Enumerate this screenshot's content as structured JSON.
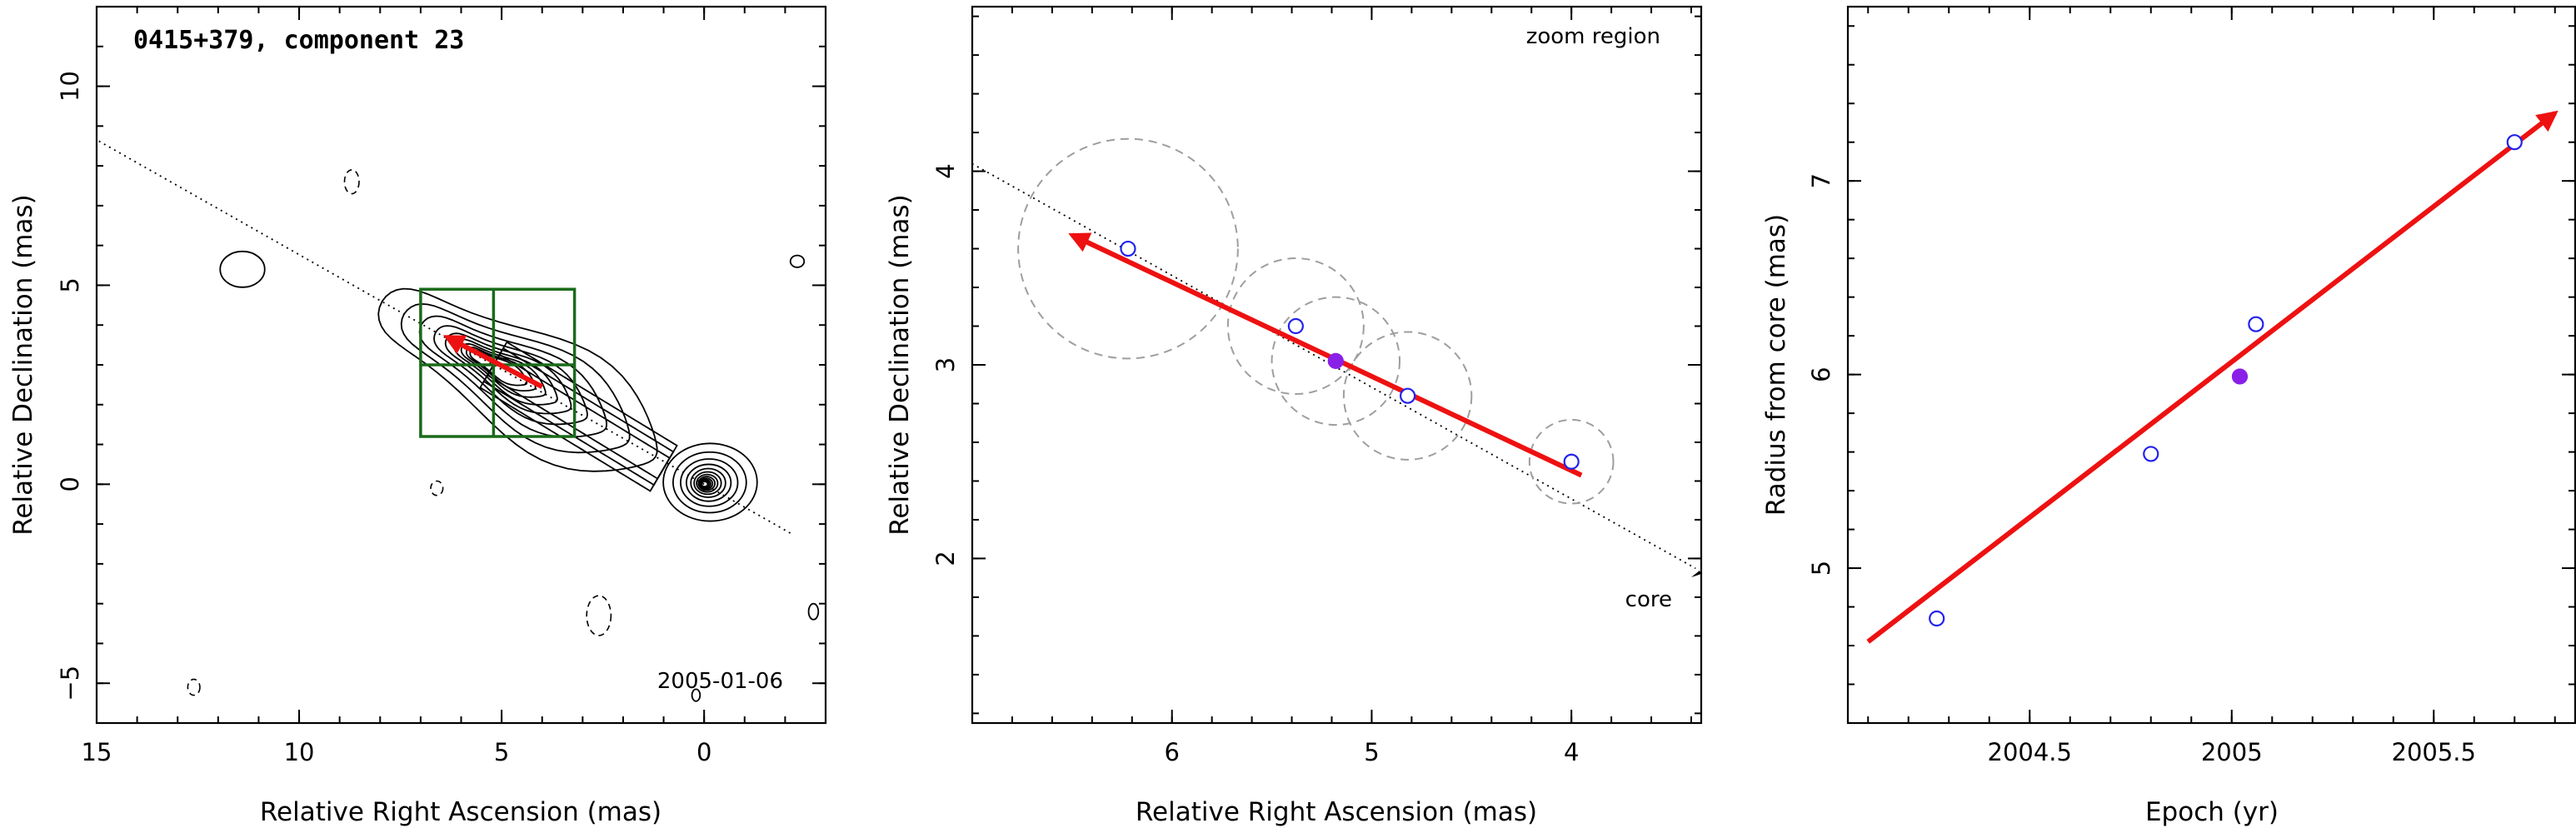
{
  "colors": {
    "motion_arrow": "#ee1111",
    "data_open": "#2222ee",
    "data_filled": "#8a1fe8",
    "zoom_box": "#1a6b1a",
    "size_circles": "#9e9e9e"
  },
  "panel1": {
    "title": "0415+379, component 23",
    "epoch_label": "2005-01-06"
  },
  "panel2": {
    "zoom_text": "zoom region",
    "core_text": "core"
  },
  "chart_data": [
    {
      "type": "heatmap",
      "title": "0415+379, component 23",
      "xlabel": "Relative Right Ascension (mas)",
      "ylabel": "Relative Declination (mas)",
      "xlim": [
        15,
        -3
      ],
      "ylim": [
        -6,
        12
      ],
      "xticks": [
        15,
        10,
        5,
        0
      ],
      "yticks": [
        -5,
        0,
        5,
        10
      ],
      "xtick_labels": [
        "15",
        "10",
        "5",
        "0"
      ],
      "ytick_labels": [
        "−5",
        "0",
        "5",
        "10"
      ],
      "annotation": "2005-01-06",
      "core": [
        0,
        0
      ],
      "component_position": [
        5.2,
        3.0
      ],
      "motion_vector": {
        "from": [
          4.0,
          2.45
        ],
        "to": [
          6.35,
          3.7
        ]
      },
      "zoom_box": {
        "x": [
          3.2,
          7.0
        ],
        "y": [
          1.2,
          4.9
        ]
      },
      "contour_levels": 12
    },
    {
      "type": "scatter",
      "xlabel": "Relative Right Ascension (mas)",
      "ylabel": "Relative Declination (mas)",
      "xlim": [
        7.0,
        3.35
      ],
      "ylim": [
        1.15,
        4.85
      ],
      "xticks": [
        6,
        5,
        4
      ],
      "yticks": [
        2,
        3,
        4
      ],
      "xtick_labels": [
        "6",
        "5",
        "4"
      ],
      "ytick_labels": [
        "2",
        "3",
        "4"
      ],
      "annotations": [
        "zoom region",
        "core"
      ],
      "points": [
        {
          "x": 6.22,
          "y": 3.6,
          "size": 0.55,
          "filled": false
        },
        {
          "x": 5.38,
          "y": 3.2,
          "size": 0.34,
          "filled": false
        },
        {
          "x": 5.18,
          "y": 3.02,
          "size": 0.32,
          "filled": true
        },
        {
          "x": 4.82,
          "y": 2.84,
          "size": 0.32,
          "filled": false
        },
        {
          "x": 4.0,
          "y": 2.5,
          "size": 0.21,
          "filled": false
        }
      ],
      "motion_vector": {
        "from": [
          3.95,
          2.43
        ],
        "to": [
          6.5,
          3.67
        ]
      }
    },
    {
      "type": "scatter",
      "xlabel": "Epoch (yr)",
      "ylabel": "Radius from core (mas)",
      "xlim": [
        2004.05,
        2005.85
      ],
      "ylim": [
        4.2,
        7.9
      ],
      "xticks": [
        2004.5,
        2005,
        2005.5
      ],
      "yticks": [
        5,
        6,
        7
      ],
      "xtick_labels": [
        "2004.5",
        "2005",
        "2005.5"
      ],
      "ytick_labels": [
        "5",
        "6",
        "7"
      ],
      "points": [
        {
          "x": 2004.27,
          "y": 4.74,
          "filled": false
        },
        {
          "x": 2004.8,
          "y": 5.59,
          "filled": false
        },
        {
          "x": 2005.02,
          "y": 5.99,
          "filled": true
        },
        {
          "x": 2005.06,
          "y": 6.26,
          "filled": false
        },
        {
          "x": 2005.7,
          "y": 7.2,
          "filled": false
        }
      ],
      "fit_line": {
        "from": [
          2004.1,
          4.62
        ],
        "to": [
          2005.8,
          7.35
        ]
      }
    }
  ]
}
